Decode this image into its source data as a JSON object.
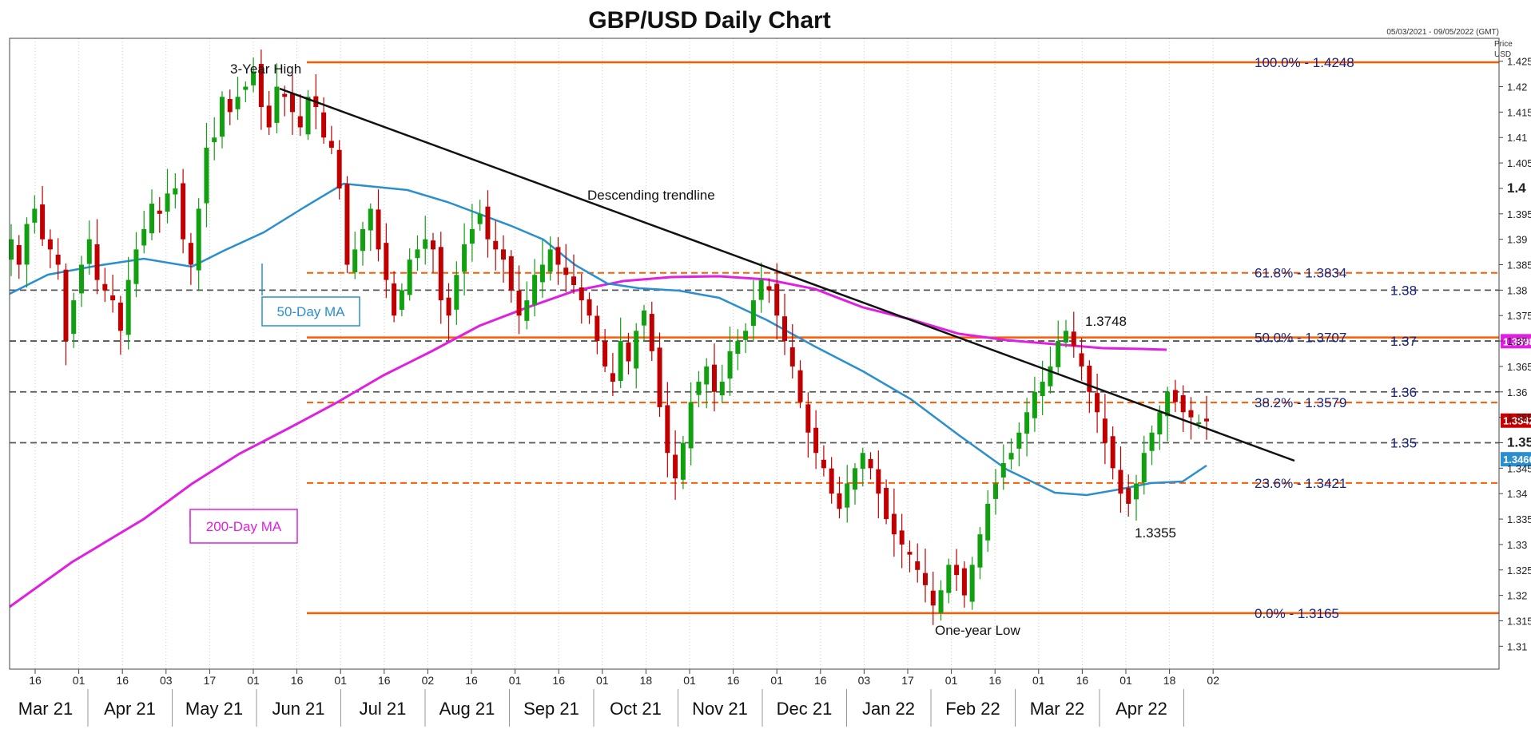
{
  "chart_data": {
    "type": "candlestick",
    "title": "GBP/USD Daily Chart",
    "date_range": "05/03/2021 - 09/05/2022 (GMT)",
    "ylabel": "Price USD",
    "ylim": [
      1.3055,
      1.4295
    ],
    "y_ticks": [
      "1.425",
      "1.42",
      "1.415",
      "1.41",
      "1.405",
      "1.4",
      "1.395",
      "1.39",
      "1.385",
      "1.38",
      "1.375",
      "1.37",
      "1.365",
      "1.36",
      "1.355",
      "1.35",
      "1.345",
      "1.34",
      "1.335",
      "1.33",
      "1.325",
      "1.32",
      "1.315",
      "1.31"
    ],
    "y_ticks_bold": [
      "1.4",
      "1.35"
    ],
    "x_day_ticks": [
      "16",
      "01",
      "16",
      "03",
      "17",
      "01",
      "16",
      "01",
      "16",
      "02",
      "16",
      "01",
      "16",
      "01",
      "18",
      "01",
      "16",
      "01",
      "16",
      "03",
      "17",
      "01",
      "16",
      "01",
      "16",
      "01",
      "18",
      "02"
    ],
    "x_month_labels": [
      "Mar 21",
      "Apr 21",
      "May 21",
      "Jun 21",
      "Jul 21",
      "Aug 21",
      "Sep 21",
      "Oct 21",
      "Nov 21",
      "Dec 21",
      "Jan 22",
      "Feb 22",
      "Mar 22",
      "Apr 22"
    ],
    "fibonacci": [
      {
        "label": "100.0%",
        "value": "1.4248",
        "price": 1.4248
      },
      {
        "label": "61.8%",
        "value": "1.3834",
        "price": 1.3834
      },
      {
        "label": "50.0%",
        "value": "1.3707",
        "price": 1.3707
      },
      {
        "label": "38.2%",
        "value": "1.3579",
        "price": 1.3579
      },
      {
        "label": "23.6%",
        "value": "1.3421",
        "price": 1.3421
      },
      {
        "label": "0.0%",
        "value": "1.3165",
        "price": 1.3165
      }
    ],
    "horizontal_levels": [
      {
        "label": "1.38",
        "price": 1.38
      },
      {
        "label": "1.37",
        "price": 1.37
      },
      {
        "label": "1.36",
        "price": 1.36
      },
      {
        "label": "1.35",
        "price": 1.35
      }
    ],
    "price_tags": [
      {
        "label": "1.3698",
        "price": 1.3698,
        "color": "#e020e0"
      },
      {
        "label": "1.3542",
        "price": 1.3542,
        "color": "#cc0000"
      },
      {
        "label": "1.3466",
        "price": 1.3466,
        "color": "#2a8fcf"
      }
    ],
    "annotations": {
      "three_year_high": "3-Year High",
      "trendline": "Descending trendline",
      "high_label": "1.3748",
      "low_label": "1.3355",
      "one_year_low": "One-year Low",
      "ma50": "50-Day MA",
      "ma200": "200-Day MA"
    },
    "series": {
      "candles_close_path": [
        [
          1.39,
          1.385,
          1.393,
          1.396,
          1.39,
          1.388,
          1.385,
          1.37,
          1.378,
          1.385,
          1.39,
          1.382,
          1.38,
          1.378,
          1.372,
          1.382,
          1.388,
          1.392,
          1.397,
          1.395,
          1.399,
          1.4,
          1.39,
          1.385,
          1.396,
          1.408,
          1.41,
          1.418,
          1.415,
          1.418,
          1.42,
          1.423,
          1.416,
          1.412,
          1.42,
          1.418,
          1.415,
          1.412,
          1.418,
          1.416,
          1.41,
          1.408,
          1.4,
          1.385,
          1.388,
          1.392,
          1.396,
          1.388,
          1.382,
          1.375,
          1.38,
          1.386,
          1.388,
          1.39,
          1.388,
          1.378,
          1.375,
          1.383,
          1.389,
          1.392,
          1.395,
          1.39,
          1.388,
          1.386,
          1.38,
          1.375,
          1.378,
          1.383,
          1.385,
          1.388,
          1.385,
          1.383,
          1.381,
          1.378,
          1.375,
          1.37,
          1.365,
          1.362,
          1.37,
          1.366,
          1.372,
          1.376,
          1.368,
          1.357,
          1.348,
          1.343,
          1.35,
          1.358,
          1.362,
          1.365,
          1.36,
          1.362,
          1.368,
          1.37,
          1.372,
          1.378,
          1.382,
          1.38,
          1.375,
          1.37,
          1.365,
          1.358,
          1.352,
          1.348,
          1.345,
          1.34,
          1.337,
          1.342,
          1.345,
          1.348,
          1.345,
          1.34,
          1.335,
          1.332,
          1.33,
          1.328,
          1.325,
          1.322,
          1.318,
          1.321,
          1.326,
          1.324,
          1.32,
          1.326,
          1.332,
          1.338,
          1.342,
          1.346,
          1.348,
          1.352,
          1.356,
          1.36,
          1.362,
          1.365,
          1.37,
          1.372,
          1.369,
          1.365,
          1.36,
          1.356,
          1.35,
          1.345,
          1.34,
          1.338,
          1.342,
          1.348,
          1.352,
          1.356,
          1.36,
          1.358,
          1.356,
          1.355,
          1.354,
          1.3542
        ]
      ]
    }
  }
}
